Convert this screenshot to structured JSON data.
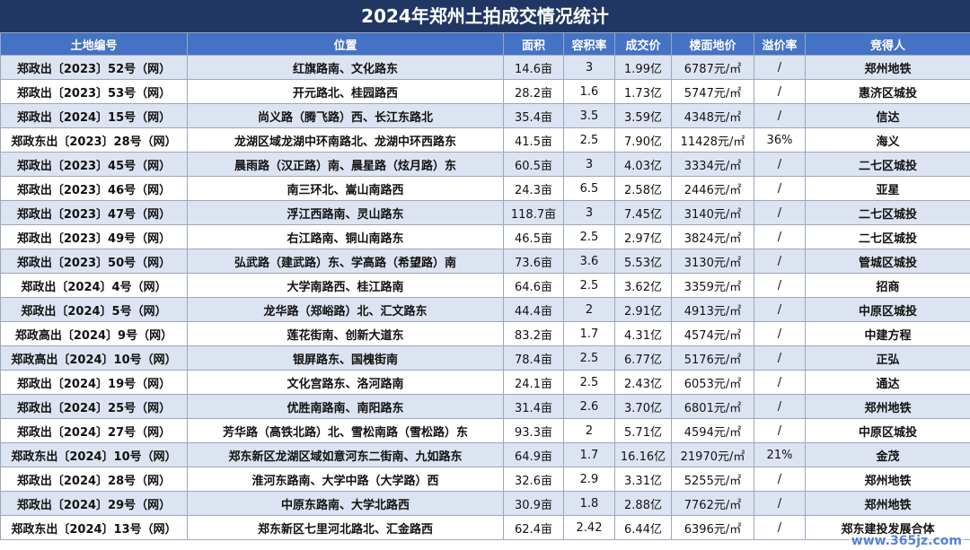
{
  "title": "2024年郑州土拍成交情况统计",
  "headers": [
    "土地编号",
    "位置",
    "面积",
    "容积率",
    "成交价",
    "楼面地价",
    "溢价率",
    "竞得人"
  ],
  "rows": [
    [
      "郑政出〔2023〕52号（网）",
      "红旗路南、文化路东",
      "14.6亩",
      "3",
      "1.99亿",
      "6787元/㎡",
      "/",
      "郑州地铁"
    ],
    [
      "郑政出〔2023〕53号（网）",
      "开元路北、桂园路西",
      "28.2亩",
      "1.6",
      "1.73亿",
      "5747元/㎡",
      "/",
      "惠济区城投"
    ],
    [
      "郑政出〔2024〕15号（网）",
      "尚义路（腾飞路）西、长江东路北",
      "35.4亩",
      "3.5",
      "3.59亿",
      "4348元/㎡",
      "/",
      "信达"
    ],
    [
      "郑政东出〔2023〕28号（网）",
      "龙湖区域龙湖中环南路北、龙湖中环西路东",
      "41.5亩",
      "2.5",
      "7.90亿",
      "11428元/㎡",
      "36%",
      "海义"
    ],
    [
      "郑政出〔2023〕45号（网）",
      "晨雨路（汉正路）南、晨星路（炫月路）东",
      "60.5亩",
      "3",
      "4.03亿",
      "3334元/㎡",
      "/",
      "二七区城投"
    ],
    [
      "郑政出〔2023〕46号（网）",
      "南三环北、嵩山南路西",
      "24.3亩",
      "6.5",
      "2.58亿",
      "2446元/㎡",
      "/",
      "亚星"
    ],
    [
      "郑政出〔2023〕47号（网）",
      "浮江西路南、灵山路东",
      "118.7亩",
      "3",
      "7.45亿",
      "3140元/㎡",
      "/",
      "二七区城投"
    ],
    [
      "郑政出〔2023〕49号（网）",
      "右江路南、铜山南路东",
      "46.5亩",
      "2.5",
      "2.97亿",
      "3824元/㎡",
      "/",
      "二七区城投"
    ],
    [
      "郑政出〔2023〕50号（网）",
      "弘武路（建武路）东、学高路（希望路）南",
      "73.6亩",
      "3.6",
      "5.53亿",
      "3130元/㎡",
      "/",
      "管城区城投"
    ],
    [
      "郑政出〔2024〕4号（网）",
      "大学南路西、桂江路南",
      "64.6亩",
      "2.5",
      "3.62亿",
      "3359元/㎡",
      "/",
      "招商"
    ],
    [
      "郑政出〔2024〕5号（网）",
      "龙华路（郑峪路）北、汇文路东",
      "44.4亩",
      "2",
      "2.91亿",
      "4913元/㎡",
      "/",
      "中原区城投"
    ],
    [
      "郑政高出〔2024〕9号（网）",
      "莲花街南、创新大道东",
      "83.2亩",
      "1.7",
      "4.31亿",
      "4574元/㎡",
      "/",
      "中建方程"
    ],
    [
      "郑政高出〔2024〕10号（网）",
      "银屏路东、国槐街南",
      "78.4亩",
      "2.5",
      "6.77亿",
      "5176元/㎡",
      "/",
      "正弘"
    ],
    [
      "郑政出〔2024〕19号（网）",
      "文化宫路东、洛河路南",
      "24.1亩",
      "2.5",
      "2.43亿",
      "6053元/㎡",
      "/",
      "通达"
    ],
    [
      "郑政出〔2024〕25号（网）",
      "优胜南路南、南阳路东",
      "31.4亩",
      "2.6",
      "3.70亿",
      "6801元/㎡",
      "/",
      "郑州地铁"
    ],
    [
      "郑政出〔2024〕27号（网）",
      "芳华路（高铁北路）北、雪松南路（雪松路）东",
      "93.3亩",
      "2",
      "5.71亿",
      "4594元/㎡",
      "/",
      "中原区城投"
    ],
    [
      "郑政东出〔2024〕10号（网）",
      "郑东新区龙湖区域如意河东二街南、九如路东",
      "64.9亩",
      "1.7",
      "16.16亿",
      "21970元/㎡",
      "21%",
      "金茂"
    ],
    [
      "郑政出〔2024〕28号（网）",
      "淮河东路南、大学中路（大学路）西",
      "32.6亩",
      "2.9",
      "3.31亿",
      "5255元/㎡",
      "/",
      "郑州地铁"
    ],
    [
      "郑政出〔2024〕29号（网）",
      "中原东路南、大学北路西",
      "30.9亩",
      "1.8",
      "2.88亿",
      "7762元/㎡",
      "/",
      "郑州地铁"
    ],
    [
      "郑政东出〔2024〕13号（网）",
      "郑东新区七里河北路北、汇金路西",
      "62.4亩",
      "2.42",
      "6.44亿",
      "6396元/㎡",
      "/",
      "郑东建投发展合体"
    ]
  ],
  "watermark": "www.365jz.com"
}
